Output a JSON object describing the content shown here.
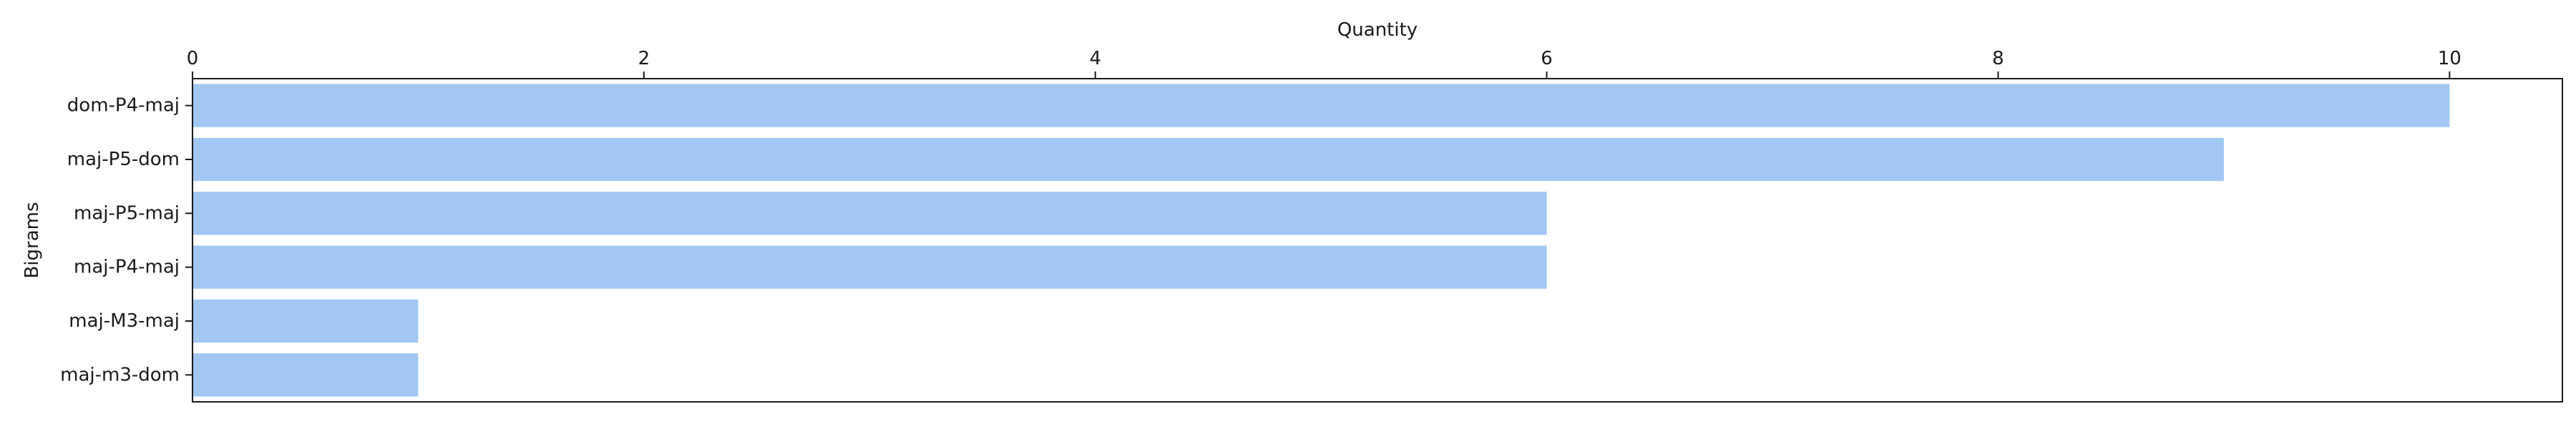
{
  "chart_data": {
    "type": "bar",
    "orientation": "horizontal",
    "categories": [
      "dom-P4-maj",
      "maj-P5-dom",
      "maj-P5-maj",
      "maj-P4-maj",
      "maj-M3-maj",
      "maj-m3-dom"
    ],
    "values": [
      10,
      9,
      6,
      6,
      1,
      1
    ],
    "xlabel": "Quantity",
    "ylabel": "Bigrams",
    "x_axis_position": "top",
    "xlim": [
      0,
      10.5
    ],
    "xticks": [
      0,
      2,
      4,
      6,
      8,
      10
    ],
    "grid": false,
    "bar_color": "#a1c8f3"
  }
}
